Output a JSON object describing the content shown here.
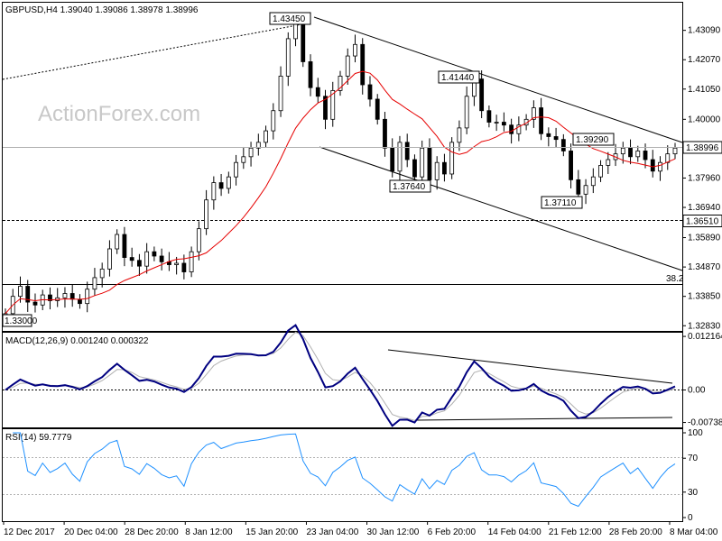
{
  "chart_data": {
    "type": "candlestick",
    "symbol_header": "GBPUSD,H4  1.39040 1.39086 1.38978 1.38996",
    "watermark": "ActionForex.com",
    "current_price_label": "1.38996",
    "x_tick_labels": [
      "12 Dec 2017",
      "20 Dec 04:00",
      "28 Dec 20:00",
      "8 Jan 12:00",
      "15 Jan 20:00",
      "23 Jan 04:00",
      "30 Jan 12:00",
      "6 Feb 20:00",
      "14 Feb 04:00",
      "21 Feb 12:00",
      "28 Feb 20:00",
      "8 Mar 04:00"
    ],
    "price_panel": {
      "ylim": [
        1.3265,
        1.4405
      ],
      "y_ticks": [
        "1.43090",
        "1.42070",
        "1.41050",
        "1.40000",
        "1.37960",
        "1.36940",
        "1.35890",
        "1.34870",
        "1.33850",
        "1.32830"
      ],
      "pivot_levels": [
        "1.36510"
      ],
      "fib_label": "38.2",
      "callouts": [
        "1.43450",
        "1.41440",
        "1.39290",
        "1.37640",
        "1.37110",
        "1.33000"
      ],
      "closes": [
        1.3325,
        1.3385,
        1.342,
        1.3365,
        1.3355,
        1.339,
        1.337,
        1.338,
        1.3395,
        1.3375,
        1.336,
        1.341,
        1.345,
        1.348,
        1.355,
        1.36,
        1.352,
        1.351,
        1.349,
        1.354,
        1.3525,
        1.3505,
        1.3495,
        1.35,
        1.347,
        1.354,
        1.362,
        1.372,
        1.378,
        1.376,
        1.38,
        1.385,
        1.387,
        1.39,
        1.392,
        1.396,
        1.403,
        1.415,
        1.428,
        1.433,
        1.42,
        1.411,
        1.408,
        1.4,
        1.41,
        1.415,
        1.422,
        1.426,
        1.412,
        1.407,
        1.4,
        1.39,
        1.382,
        1.392,
        1.386,
        1.38,
        1.39,
        1.379,
        1.385,
        1.381,
        1.392,
        1.397,
        1.408,
        1.414,
        1.403,
        1.399,
        1.399,
        1.398,
        1.395,
        1.398,
        1.4,
        1.404,
        1.395,
        1.394,
        1.393,
        1.389,
        1.379,
        1.374,
        1.377,
        1.38,
        1.384,
        1.386,
        1.388,
        1.39,
        1.387,
        1.389,
        1.386,
        1.382,
        1.385,
        1.388,
        1.39
      ]
    },
    "macd_panel": {
      "label": "MACD(12,26,9) 0.001240 0.000322",
      "ylim": [
        -0.0085,
        0.013
      ],
      "y_ticks": [
        "0.012164",
        "0.00",
        "-0.007384"
      ]
    },
    "rsi_panel": {
      "label": "RSI(14) 59.7779",
      "ylim": [
        0,
        100
      ],
      "y_ticks": [
        "100",
        "70",
        "30",
        "0"
      ]
    }
  }
}
